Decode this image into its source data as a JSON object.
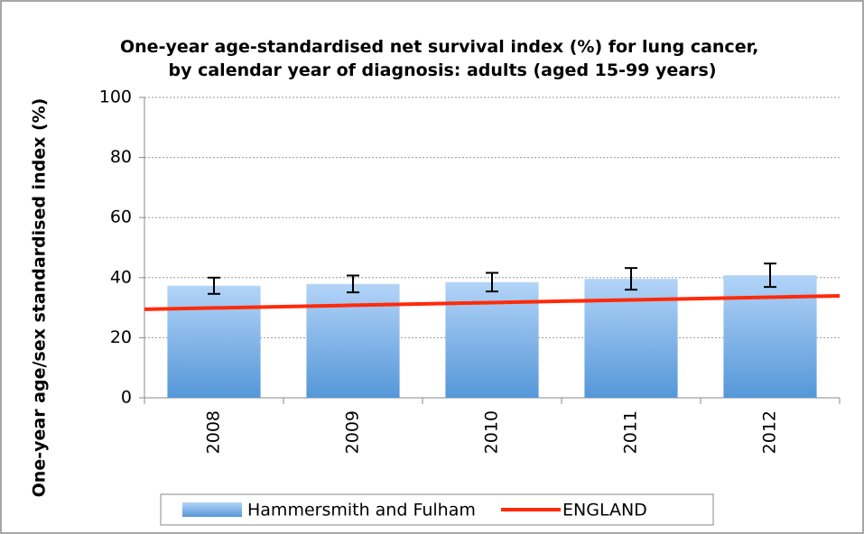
{
  "chart_data": {
    "type": "bar",
    "title": "One-year age-standardised net survival index (%) for lung cancer, by calendar year of diagnosis: adults (aged 15-99 years)",
    "y_label": "One-year age/sex standardised index (%)",
    "categories": [
      "2008",
      "2009",
      "2010",
      "2011",
      "2012"
    ],
    "series": [
      {
        "name": "Hammersmith and Fulham",
        "type": "bar",
        "color": "#5b9bd5",
        "values": [
          37.3,
          37.9,
          38.5,
          39.6,
          40.8
        ],
        "errors": [
          2.7,
          2.8,
          3.1,
          3.6,
          3.9
        ]
      },
      {
        "name": "ENGLAND",
        "type": "line",
        "color": "#ff2a0a",
        "values": [
          29.9,
          30.8,
          31.7,
          32.6,
          33.5
        ]
      }
    ],
    "ylim": [
      0,
      100
    ],
    "yticks": [
      0,
      20,
      40,
      60,
      80,
      100
    ],
    "grid": true,
    "legend": "bottom"
  }
}
